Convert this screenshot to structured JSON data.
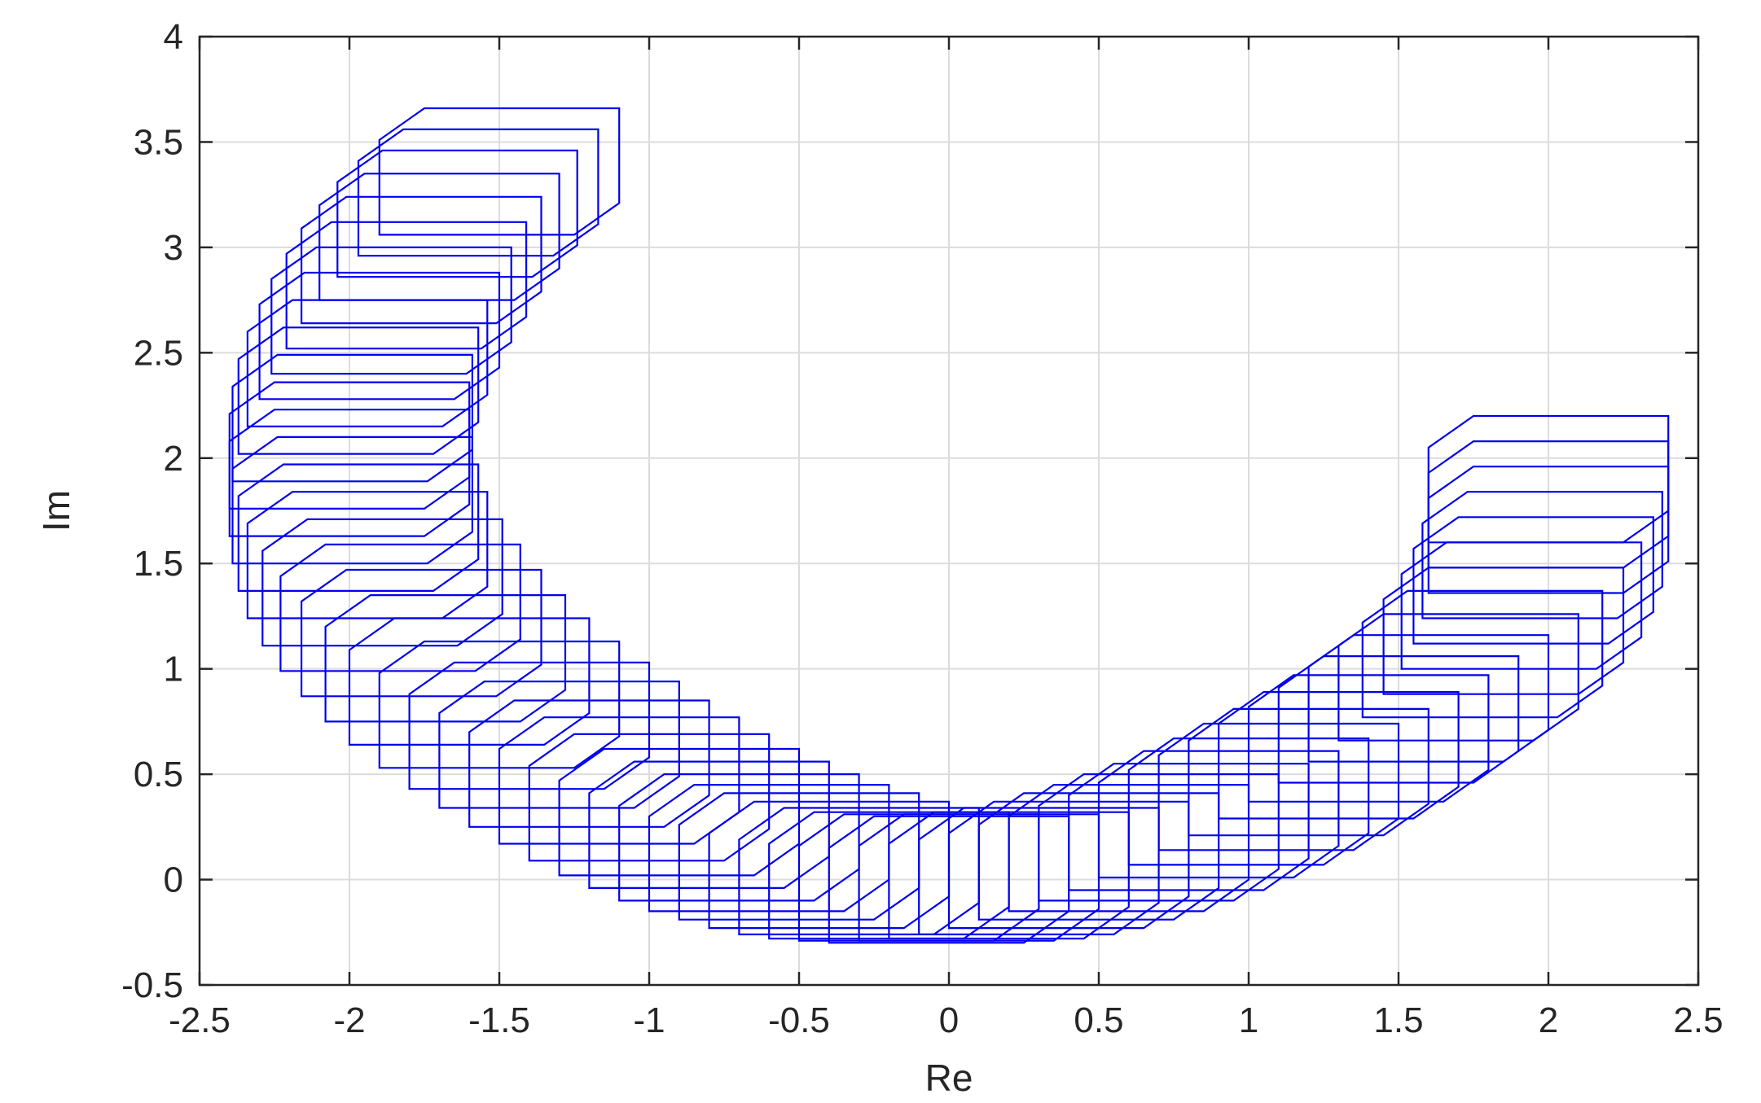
{
  "chart_data": {
    "type": "line",
    "title": "",
    "xlabel": "Re",
    "ylabel": "Im",
    "xlim": [
      -2.5,
      2.5
    ],
    "ylim": [
      -0.5,
      4
    ],
    "xticks": [
      -2.5,
      -2,
      -1.5,
      -1,
      -0.5,
      0,
      0.5,
      1,
      1.5,
      2,
      2.5
    ],
    "xtick_labels": [
      "-2.5",
      "-2",
      "-1.5",
      "-1",
      "-0.5",
      "0",
      "0.5",
      "1",
      "1.5",
      "2",
      "2.5"
    ],
    "yticks": [
      -0.5,
      0,
      0.5,
      1,
      1.5,
      2,
      2.5,
      3,
      3.5,
      4
    ],
    "ytick_labels": [
      "-0.5",
      "0",
      "0.5",
      "1",
      "1.5",
      "2",
      "2.5",
      "3",
      "3.5",
      "4"
    ],
    "grid": true,
    "series_color": "#0000ee",
    "region_description": "family of value-set polygons (boxes with chamfered corners) traced along a curve in the complex plane",
    "centers": [
      {
        "re": 0.0,
        "im": 0.0
      },
      {
        "re": 0.1,
        "im": 0.01
      },
      {
        "re": 0.2,
        "im": 0.02
      },
      {
        "re": 0.3,
        "im": 0.04
      },
      {
        "re": 0.4,
        "im": 0.07
      },
      {
        "re": 0.5,
        "im": 0.11
      },
      {
        "re": 0.6,
        "im": 0.15
      },
      {
        "re": 0.7,
        "im": 0.2
      },
      {
        "re": 0.8,
        "im": 0.25
      },
      {
        "re": 0.9,
        "im": 0.31
      },
      {
        "re": 1.0,
        "im": 0.37
      },
      {
        "re": 1.1,
        "im": 0.44
      },
      {
        "re": 1.2,
        "im": 0.51
      },
      {
        "re": 1.3,
        "im": 0.59
      },
      {
        "re": 1.4,
        "im": 0.67
      },
      {
        "re": 1.5,
        "im": 0.76
      },
      {
        "re": 1.6,
        "im": 0.86
      },
      {
        "re": 1.7,
        "im": 0.96
      },
      {
        "re": 1.78,
        "im": 1.07
      },
      {
        "re": 1.85,
        "im": 1.18
      },
      {
        "re": 1.91,
        "im": 1.3
      },
      {
        "re": 1.95,
        "im": 1.42
      },
      {
        "re": 1.98,
        "im": 1.54
      },
      {
        "re": 2.0,
        "im": 1.66
      },
      {
        "re": 2.0,
        "im": 1.78
      },
      {
        "re": 2.0,
        "im": 1.9
      },
      {
        "re": -0.1,
        "im": 0.01
      },
      {
        "re": -0.2,
        "im": 0.02
      },
      {
        "re": -0.3,
        "im": 0.04
      },
      {
        "re": -0.4,
        "im": 0.07
      },
      {
        "re": -0.5,
        "im": 0.11
      },
      {
        "re": -0.6,
        "im": 0.15
      },
      {
        "re": -0.7,
        "im": 0.2
      },
      {
        "re": -0.8,
        "im": 0.26
      },
      {
        "re": -0.9,
        "im": 0.32
      },
      {
        "re": -1.0,
        "im": 0.39
      },
      {
        "re": -1.1,
        "im": 0.47
      },
      {
        "re": -1.2,
        "im": 0.55
      },
      {
        "re": -1.3,
        "im": 0.64
      },
      {
        "re": -1.4,
        "im": 0.73
      },
      {
        "re": -1.5,
        "im": 0.83
      },
      {
        "re": -1.6,
        "im": 0.94
      },
      {
        "re": -1.68,
        "im": 1.05
      },
      {
        "re": -1.76,
        "im": 1.17
      },
      {
        "re": -1.83,
        "im": 1.29
      },
      {
        "re": -1.89,
        "im": 1.41
      },
      {
        "re": -1.94,
        "im": 1.54
      },
      {
        "re": -1.97,
        "im": 1.67
      },
      {
        "re": -1.99,
        "im": 1.8
      },
      {
        "re": -2.0,
        "im": 1.93
      },
      {
        "re": -2.0,
        "im": 2.06
      },
      {
        "re": -1.99,
        "im": 2.19
      },
      {
        "re": -1.97,
        "im": 2.32
      },
      {
        "re": -1.94,
        "im": 2.45
      },
      {
        "re": -1.9,
        "im": 2.58
      },
      {
        "re": -1.86,
        "im": 2.7
      },
      {
        "re": -1.81,
        "im": 2.82
      },
      {
        "re": -1.76,
        "im": 2.94
      },
      {
        "re": -1.7,
        "im": 3.05
      },
      {
        "re": -1.64,
        "im": 3.16
      },
      {
        "re": -1.57,
        "im": 3.26
      },
      {
        "re": -1.5,
        "im": 3.36
      }
    ],
    "box_half_width": 0.4,
    "box_half_height": 0.3,
    "chamfer": 0.15
  }
}
